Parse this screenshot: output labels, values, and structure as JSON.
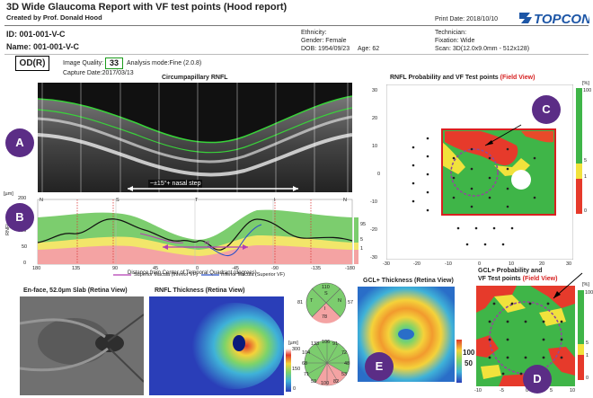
{
  "header": {
    "title": "3D Wide Glaucoma Report with VF test points (Hood report)",
    "created_by": "Created by Prof. Donald Hood",
    "print_date": "Print Date: 2018/10/10",
    "brand": "TOPCON"
  },
  "patient": {
    "id": "ID: 001-001-V-C",
    "name": "Name: 001-001-V-C",
    "ethnicity": "Ethnicity:",
    "gender": "Gender: Female",
    "dob": "DOB: 1954/09/23",
    "age": "Age: 62",
    "technician": "Technician:",
    "fixation": "Fixation: Wide",
    "scan": "Scan: 3D(12.0x9.0mm - 512x128)"
  },
  "exam": {
    "eye": "OD(R)",
    "image_quality_label": "Image Quality:",
    "image_quality_value": "33",
    "analysis_mode": "Analysis mode:Fine (2.0.8)",
    "capture_date": "Capture Date:2017/03/13"
  },
  "rnfl_scan": {
    "title": "Circumpapillary RNFL",
    "annotation": "~±15°+ nasal step"
  },
  "rnfl_plot": {
    "unit": "[µm]",
    "ylabel": "RNFL",
    "yticks": [
      "200",
      "150",
      "100",
      "50",
      "0"
    ],
    "sector_labels": [
      "N",
      "S",
      "T",
      "I",
      "N"
    ],
    "xticks": [
      "180",
      "135",
      "90",
      "45",
      "0",
      "-45",
      "-90",
      "-135",
      "-180"
    ],
    "xlabel": "Distance from Center of Temporal Quadrant (degrees)",
    "annotation": "±8",
    "legend_superior": "Superior Macula (Inferior VF)",
    "legend_inferior": "Inferior Macula (Superior VF)",
    "percentile_labels": [
      "95",
      "5",
      "1"
    ]
  },
  "rnfl_prob": {
    "title_main": "RNFL Probability and VF Test points",
    "title_suffix": "(Field View)",
    "xticks": [
      "-30",
      "-20",
      "-10",
      "0",
      "10",
      "20",
      "30"
    ],
    "yticks": [
      "30",
      "20",
      "10",
      "0",
      "-10",
      "-20",
      "-30"
    ],
    "scale_unit": "[%]",
    "scale_top": "100",
    "scale_5": "5",
    "scale_1": "1",
    "scale_bottom": "0"
  },
  "enface": {
    "title": "En-face, 52.0µm Slab (Retina View)"
  },
  "rnfl_thickness": {
    "title": "RNFL Thickness (Retina View)"
  },
  "sector_chart_top": {
    "values": [
      "110",
      "57",
      "78",
      "81"
    ],
    "letters": [
      "S",
      "N",
      "I",
      "T"
    ]
  },
  "sector_chart_bottom": {
    "values": [
      "133",
      "106",
      "91",
      "72",
      "48",
      "53",
      "82",
      "100",
      "53",
      "71",
      "68",
      "104"
    ]
  },
  "thickness_scale": {
    "unit": "[µm]",
    "top": "300",
    "mid": "150",
    "bottom": "0"
  },
  "gcl_thickness": {
    "title": "GCL+ Thickness (Retina View)",
    "scale_top": "100",
    "scale_bottom": "50"
  },
  "gcl_prob": {
    "title_line1": "GCL+ Probability and",
    "title_line2": "VF Test points",
    "title_suffix": "(Field View)",
    "xticks": [
      "-10",
      "-5",
      "0",
      "5",
      "10"
    ],
    "scale_unit": "[%]",
    "scale_top": "100",
    "scale_5": "5",
    "scale_1": "1",
    "scale_bottom": "0"
  },
  "callouts": {
    "a": "A",
    "b": "B",
    "c": "C",
    "d": "D",
    "e": "E"
  }
}
